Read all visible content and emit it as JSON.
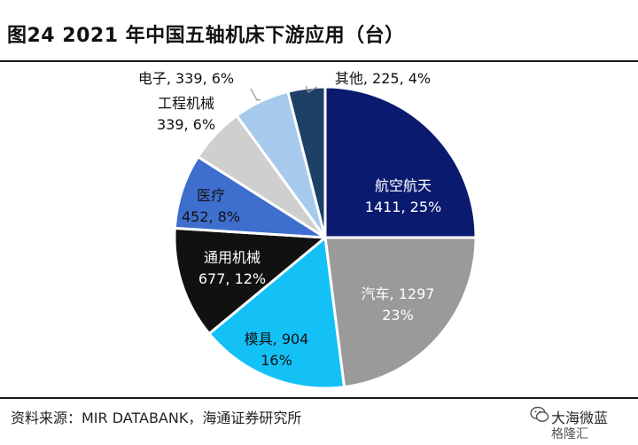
{
  "title": "图24 2021 年中国五轴机床下游应用（台）",
  "source": "资料来源：MIR DATABANK，海通证券研究所",
  "watermark": {
    "line1": "大海微蓝",
    "line2": "格隆汇"
  },
  "chart_data": {
    "type": "pie",
    "unit": "台",
    "slices": [
      {
        "label": "航空航天",
        "value": 1411,
        "percent": "25%",
        "color": "#0a1a6e",
        "label_color": "#ffffff"
      },
      {
        "label": "汽车",
        "value": 1297,
        "percent": "23%",
        "color": "#9a9a9a",
        "label_color": "#ffffff"
      },
      {
        "label": "模具",
        "value": 904,
        "percent": "16%",
        "color": "#13c1f7",
        "label_color": "#111111"
      },
      {
        "label": "通用机械",
        "value": 677,
        "percent": "12%",
        "color": "#111111",
        "label_color": "#ffffff"
      },
      {
        "label": "医疗",
        "value": 452,
        "percent": "8%",
        "color": "#3f6fce",
        "label_color": "#111111"
      },
      {
        "label": "工程机械",
        "value": 339,
        "percent": "6%",
        "color": "#cfcfcf",
        "label_color": "#111111"
      },
      {
        "label": "电子",
        "value": 339,
        "percent": "6%",
        "color": "#a7c9ec",
        "label_color": "#111111"
      },
      {
        "label": "其他",
        "value": 225,
        "percent": "4%",
        "color": "#1e3f66",
        "label_color": "#111111"
      }
    ]
  }
}
